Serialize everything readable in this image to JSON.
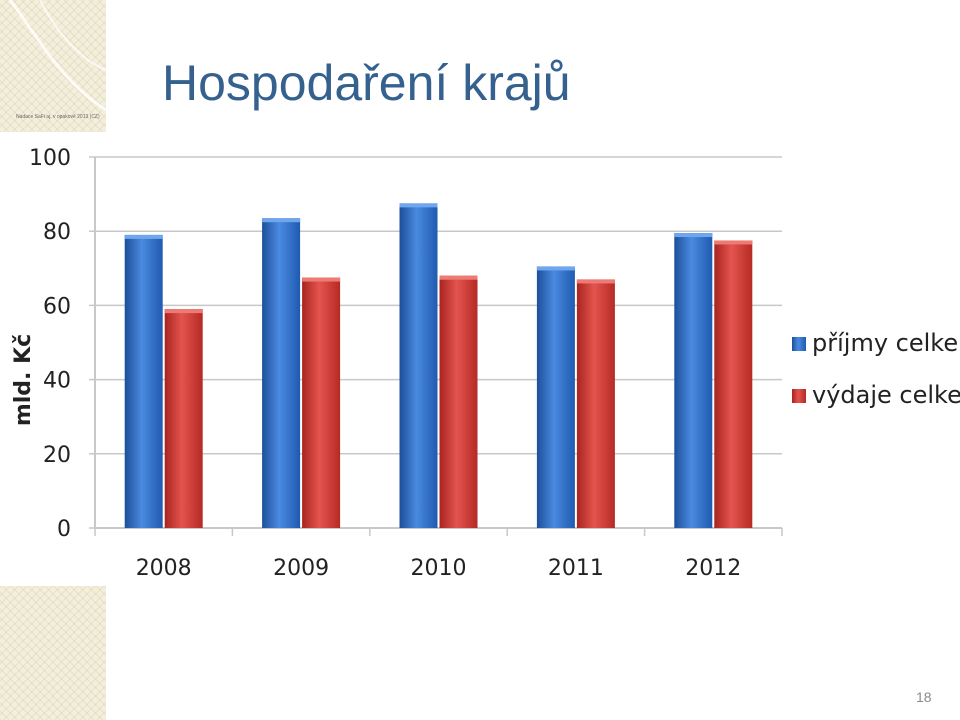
{
  "slide": {
    "title": "Hospodaření krajů",
    "tiny_note": "Nadace SaFi aj. v opakově 2013 (CZ)",
    "page_number": "18"
  },
  "colors": {
    "title": "#35618f",
    "series_income": "#2f6fc4",
    "series_expense": "#d23a35",
    "grid": "#c8c8c8",
    "deco_background": "#f3efdc"
  },
  "chart_data": {
    "type": "bar",
    "categories": [
      "2008",
      "2009",
      "2010",
      "2011",
      "2012"
    ],
    "series": [
      {
        "name": "příjmy celkem",
        "values": [
          79,
          83.5,
          87.5,
          70.5,
          79.5
        ]
      },
      {
        "name": "výdaje celkem",
        "values": [
          59,
          67.5,
          68,
          67,
          77.5
        ]
      }
    ],
    "ylabel": "mld. Kč",
    "ylim": [
      0,
      100
    ],
    "yticks": [
      0,
      20,
      40,
      60,
      80,
      100
    ],
    "grid": true,
    "legend": "right"
  }
}
